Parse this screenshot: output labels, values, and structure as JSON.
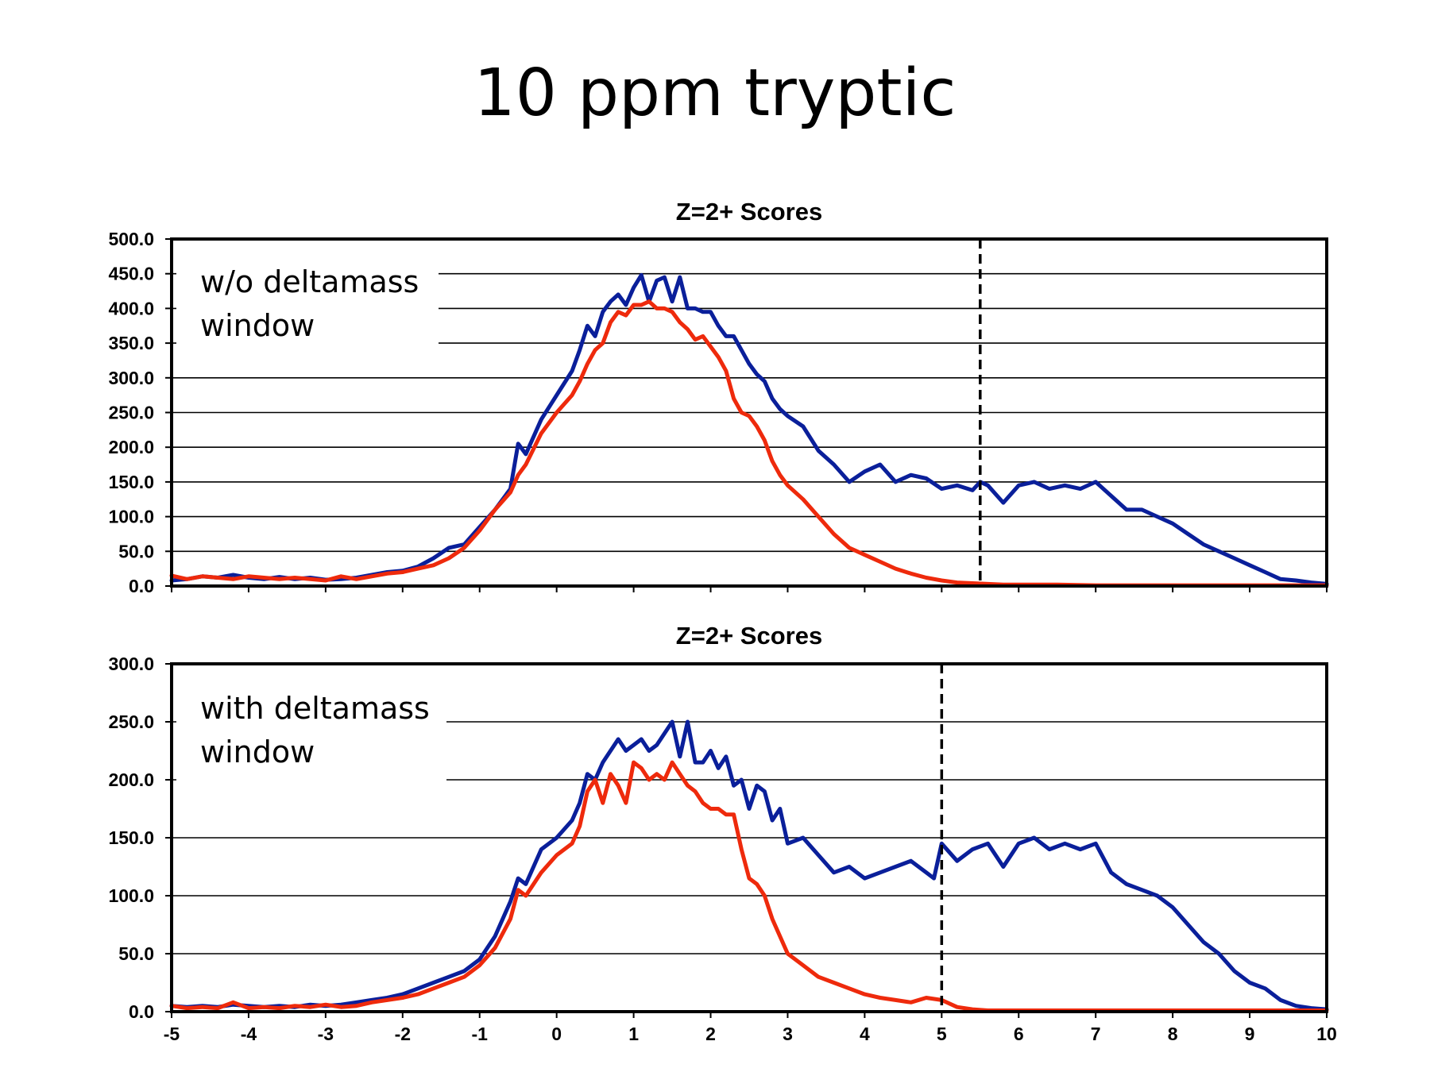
{
  "page": {
    "title": "10 ppm tryptic"
  },
  "colors": {
    "blue": "#0a1f9a",
    "red": "#ee2a0c",
    "grid": "#000000",
    "background": "#ffffff"
  },
  "chart_data": [
    {
      "type": "line",
      "title": "Z=2+ Scores",
      "annotation": [
        "w/o deltamass",
        "window"
      ],
      "xlim": [
        -5,
        10
      ],
      "ylim": [
        0,
        500
      ],
      "yticks": [
        "0.0",
        "50.0",
        "100.0",
        "150.0",
        "200.0",
        "250.0",
        "300.0",
        "350.0",
        "400.0",
        "450.0",
        "500.0"
      ],
      "xticks": [
        -5,
        -4,
        -3,
        -2,
        -1,
        0,
        1,
        2,
        3,
        4,
        5,
        6,
        7,
        8,
        9,
        10
      ],
      "show_xtick_labels": false,
      "vline": 5.5,
      "grid": true,
      "series": [
        {
          "color": "blue",
          "x": [
            -5,
            -4.8,
            -4.6,
            -4.4,
            -4.2,
            -4,
            -3.8,
            -3.6,
            -3.4,
            -3.2,
            -3,
            -2.8,
            -2.6,
            -2.4,
            -2.2,
            -2,
            -1.8,
            -1.6,
            -1.4,
            -1.2,
            -1,
            -0.8,
            -0.6,
            -0.5,
            -0.4,
            -0.2,
            0,
            0.2,
            0.3,
            0.4,
            0.5,
            0.6,
            0.7,
            0.8,
            0.9,
            1,
            1.1,
            1.2,
            1.3,
            1.4,
            1.5,
            1.6,
            1.7,
            1.8,
            1.9,
            2,
            2.1,
            2.2,
            2.3,
            2.4,
            2.5,
            2.6,
            2.7,
            2.8,
            2.9,
            3,
            3.2,
            3.4,
            3.6,
            3.8,
            4,
            4.2,
            4.4,
            4.6,
            4.8,
            5,
            5.2,
            5.4,
            5.5,
            5.6,
            5.8,
            6,
            6.2,
            6.4,
            6.6,
            6.8,
            7,
            7.2,
            7.4,
            7.6,
            7.8,
            8,
            8.2,
            8.4,
            8.6,
            8.8,
            9,
            9.2,
            9.4,
            9.6,
            9.8,
            10
          ],
          "y": [
            8,
            10,
            14,
            12,
            16,
            12,
            10,
            13,
            10,
            12,
            9,
            10,
            12,
            16,
            20,
            22,
            28,
            40,
            55,
            60,
            85,
            110,
            140,
            205,
            190,
            240,
            275,
            310,
            340,
            375,
            360,
            395,
            410,
            420,
            405,
            430,
            448,
            410,
            440,
            445,
            410,
            445,
            400,
            400,
            395,
            395,
            375,
            360,
            360,
            340,
            320,
            305,
            295,
            270,
            255,
            245,
            230,
            195,
            175,
            150,
            165,
            175,
            150,
            160,
            155,
            140,
            145,
            138,
            150,
            145,
            120,
            145,
            150,
            140,
            145,
            140,
            150,
            130,
            110,
            110,
            100,
            90,
            75,
            60,
            50,
            40,
            30,
            20,
            10,
            8,
            5,
            3
          ]
        },
        {
          "color": "red",
          "x": [
            -5,
            -4.8,
            -4.6,
            -4.4,
            -4.2,
            -4,
            -3.8,
            -3.6,
            -3.4,
            -3.2,
            -3,
            -2.8,
            -2.6,
            -2.4,
            -2.2,
            -2,
            -1.8,
            -1.6,
            -1.4,
            -1.2,
            -1,
            -0.8,
            -0.6,
            -0.5,
            -0.4,
            -0.2,
            0,
            0.2,
            0.3,
            0.4,
            0.5,
            0.6,
            0.7,
            0.8,
            0.9,
            1,
            1.1,
            1.2,
            1.3,
            1.4,
            1.5,
            1.6,
            1.7,
            1.8,
            1.9,
            2,
            2.1,
            2.2,
            2.3,
            2.4,
            2.5,
            2.6,
            2.7,
            2.8,
            2.9,
            3,
            3.2,
            3.4,
            3.6,
            3.8,
            4,
            4.2,
            4.4,
            4.6,
            4.8,
            5,
            5.2,
            5.4,
            5.6,
            5.8,
            6,
            6.5,
            7,
            7.5,
            8,
            8.5,
            9,
            9.5,
            10
          ],
          "y": [
            15,
            10,
            14,
            12,
            10,
            14,
            12,
            10,
            12,
            10,
            8,
            14,
            10,
            14,
            18,
            20,
            25,
            30,
            40,
            55,
            80,
            110,
            135,
            160,
            175,
            220,
            250,
            275,
            295,
            320,
            340,
            350,
            380,
            395,
            390,
            405,
            405,
            410,
            400,
            400,
            395,
            380,
            370,
            355,
            360,
            345,
            330,
            310,
            270,
            250,
            245,
            230,
            210,
            180,
            160,
            145,
            125,
            100,
            75,
            55,
            45,
            35,
            25,
            18,
            12,
            8,
            5,
            4,
            3,
            2,
            2,
            2,
            1,
            1,
            1,
            1,
            1,
            1,
            1
          ]
        }
      ]
    },
    {
      "type": "line",
      "title": "Z=2+ Scores",
      "annotation": [
        "with deltamass",
        "window"
      ],
      "xlim": [
        -5,
        10
      ],
      "ylim": [
        0,
        300
      ],
      "yticks": [
        "0.0",
        "50.0",
        "100.0",
        "150.0",
        "200.0",
        "250.0",
        "300.0"
      ],
      "xticks": [
        -5,
        -4,
        -3,
        -2,
        -1,
        0,
        1,
        2,
        3,
        4,
        5,
        6,
        7,
        8,
        9,
        10
      ],
      "show_xtick_labels": true,
      "vline": 5,
      "grid": true,
      "series": [
        {
          "color": "blue",
          "x": [
            -5,
            -4.8,
            -4.6,
            -4.4,
            -4.2,
            -4,
            -3.8,
            -3.6,
            -3.4,
            -3.2,
            -3,
            -2.8,
            -2.6,
            -2.4,
            -2.2,
            -2,
            -1.8,
            -1.6,
            -1.4,
            -1.2,
            -1,
            -0.8,
            -0.6,
            -0.5,
            -0.4,
            -0.2,
            0,
            0.2,
            0.3,
            0.4,
            0.5,
            0.6,
            0.7,
            0.8,
            0.9,
            1,
            1.1,
            1.2,
            1.3,
            1.4,
            1.5,
            1.6,
            1.7,
            1.8,
            1.9,
            2,
            2.1,
            2.2,
            2.3,
            2.4,
            2.5,
            2.6,
            2.7,
            2.8,
            2.9,
            3,
            3.2,
            3.4,
            3.6,
            3.8,
            4,
            4.2,
            4.4,
            4.6,
            4.8,
            4.9,
            5,
            5.2,
            5.4,
            5.6,
            5.8,
            6,
            6.2,
            6.4,
            6.6,
            6.8,
            7,
            7.2,
            7.4,
            7.6,
            7.8,
            8,
            8.2,
            8.4,
            8.6,
            8.8,
            9,
            9.2,
            9.4,
            9.6,
            9.8,
            10
          ],
          "y": [
            5,
            4,
            5,
            4,
            6,
            5,
            4,
            5,
            4,
            6,
            5,
            6,
            8,
            10,
            12,
            15,
            20,
            25,
            30,
            35,
            45,
            65,
            95,
            115,
            110,
            140,
            150,
            165,
            180,
            205,
            200,
            215,
            225,
            235,
            225,
            230,
            235,
            225,
            230,
            240,
            250,
            220,
            250,
            215,
            215,
            225,
            210,
            220,
            195,
            200,
            175,
            195,
            190,
            165,
            175,
            145,
            150,
            135,
            120,
            125,
            115,
            120,
            125,
            130,
            120,
            115,
            145,
            130,
            140,
            145,
            125,
            145,
            150,
            140,
            145,
            140,
            145,
            120,
            110,
            105,
            100,
            90,
            75,
            60,
            50,
            35,
            25,
            20,
            10,
            5,
            3,
            2
          ]
        },
        {
          "color": "red",
          "x": [
            -5,
            -4.8,
            -4.6,
            -4.4,
            -4.2,
            -4,
            -3.8,
            -3.6,
            -3.4,
            -3.2,
            -3,
            -2.8,
            -2.6,
            -2.4,
            -2.2,
            -2,
            -1.8,
            -1.6,
            -1.4,
            -1.2,
            -1,
            -0.8,
            -0.6,
            -0.5,
            -0.4,
            -0.2,
            0,
            0.2,
            0.3,
            0.4,
            0.5,
            0.6,
            0.7,
            0.8,
            0.9,
            1,
            1.1,
            1.2,
            1.3,
            1.4,
            1.5,
            1.6,
            1.7,
            1.8,
            1.9,
            2,
            2.1,
            2.2,
            2.3,
            2.4,
            2.5,
            2.6,
            2.7,
            2.8,
            2.9,
            3,
            3.2,
            3.4,
            3.6,
            3.8,
            4,
            4.2,
            4.4,
            4.6,
            4.8,
            5,
            5.2,
            5.4,
            5.6,
            5.8,
            6,
            6.5,
            7,
            7.5,
            8,
            8.5,
            9,
            9.5,
            10
          ],
          "y": [
            5,
            3,
            4,
            3,
            8,
            3,
            4,
            3,
            5,
            4,
            6,
            4,
            5,
            8,
            10,
            12,
            15,
            20,
            25,
            30,
            40,
            55,
            80,
            105,
            100,
            120,
            135,
            145,
            160,
            190,
            200,
            180,
            205,
            195,
            180,
            215,
            210,
            200,
            205,
            200,
            215,
            205,
            195,
            190,
            180,
            175,
            175,
            170,
            170,
            140,
            115,
            110,
            100,
            80,
            65,
            50,
            40,
            30,
            25,
            20,
            15,
            12,
            10,
            8,
            12,
            10,
            4,
            2,
            1,
            1,
            1,
            1,
            1,
            1,
            1,
            1,
            1,
            1,
            1
          ]
        }
      ]
    }
  ]
}
